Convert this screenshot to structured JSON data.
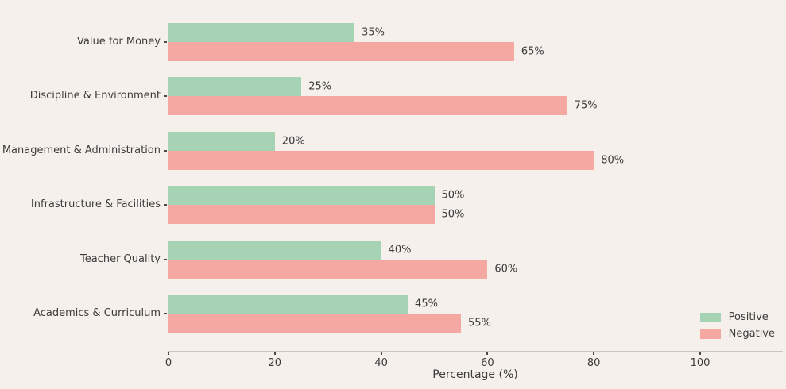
{
  "chart_data": {
    "type": "bar",
    "orientation": "horizontal",
    "title": "",
    "xlabel": "Percentage (%)",
    "ylabel": "",
    "categories": [
      "Value for Money",
      "Discipline & Environment",
      "Management & Administration",
      "Infrastructure & Facilities",
      "Teacher Quality",
      "Academics & Curriculum"
    ],
    "series": [
      {
        "name": "Positive",
        "color": "#a6d3b4",
        "values": [
          35,
          25,
          20,
          50,
          40,
          45
        ]
      },
      {
        "name": "Negative",
        "color": "#f5a8a2",
        "values": [
          65,
          75,
          80,
          50,
          60,
          55
        ]
      }
    ],
    "value_label_suffix": "%",
    "x_ticks": [
      0,
      20,
      40,
      60,
      80,
      100
    ],
    "xlim": [
      0,
      115.7
    ],
    "grid": false,
    "legend_position": "lower right",
    "colors": {
      "background": "#f5f0eb",
      "spine": "#c9c6c2",
      "text": "#3d3d3d",
      "positive": "#a6d3b4",
      "negative": "#f5a8a2"
    }
  }
}
